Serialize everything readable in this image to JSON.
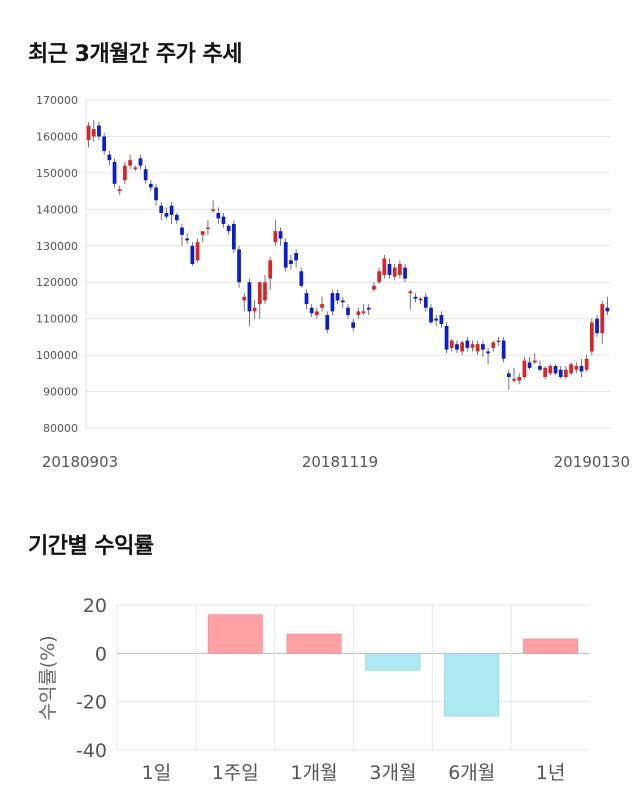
{
  "section1": {
    "title": "최근 3개월간 주가 추세"
  },
  "section2": {
    "title": "기간별 수익률"
  },
  "chart_data": [
    {
      "type": "candlestick",
      "title": "최근 3개월간 주가 추세",
      "ylim": [
        80000,
        170000
      ],
      "yticks": [
        80000,
        90000,
        100000,
        110000,
        120000,
        130000,
        140000,
        150000,
        160000,
        170000
      ],
      "x_tick_labels": [
        "20180903",
        "20181119",
        "20190130"
      ],
      "grid": true,
      "up_color": "#d62728",
      "down_color": "#0a1fc7",
      "candles": [
        [
          159000,
          164000,
          157000,
          163000
        ],
        [
          160000,
          164500,
          158500,
          162000
        ],
        [
          163000,
          164000,
          159000,
          160000
        ],
        [
          160000,
          161000,
          155000,
          156000
        ],
        [
          155000,
          156000,
          152000,
          153500
        ],
        [
          153000,
          154000,
          146000,
          147000
        ],
        [
          145000,
          146500,
          144000,
          145500
        ],
        [
          148000,
          153000,
          147000,
          152000
        ],
        [
          152000,
          155000,
          151000,
          153500
        ],
        [
          151000,
          152000,
          150500,
          151500
        ],
        [
          154000,
          155000,
          151000,
          152000
        ],
        [
          151000,
          152000,
          147000,
          148000
        ],
        [
          147000,
          148000,
          145000,
          146000
        ],
        [
          146000,
          147000,
          141000,
          142500
        ],
        [
          141000,
          142000,
          137000,
          139000
        ],
        [
          139000,
          140500,
          137500,
          138000
        ],
        [
          141000,
          142000,
          136000,
          138500
        ],
        [
          138500,
          139000,
          136000,
          137000
        ],
        [
          135000,
          136000,
          130000,
          133000
        ],
        [
          132000,
          133500,
          130500,
          131500
        ],
        [
          130000,
          131000,
          124500,
          125000
        ],
        [
          126000,
          132000,
          125500,
          131000
        ],
        [
          133000,
          134000,
          131000,
          134000
        ],
        [
          135000,
          137000,
          133000,
          135000
        ],
        [
          140000,
          142500,
          139000,
          140000
        ],
        [
          139000,
          140500,
          136000,
          137500
        ],
        [
          138000,
          139000,
          135000,
          136000
        ],
        [
          135500,
          136000,
          133000,
          134000
        ],
        [
          136000,
          137000,
          128000,
          129000
        ],
        [
          129000,
          130000,
          118500,
          120000
        ],
        [
          115000,
          117000,
          112000,
          116000
        ],
        [
          120000,
          121000,
          108000,
          112000
        ],
        [
          112000,
          115000,
          110000,
          113000
        ],
        [
          114000,
          120000,
          110000,
          120000
        ],
        [
          115000,
          122000,
          114000,
          120000
        ],
        [
          121000,
          127000,
          118000,
          126000
        ],
        [
          131000,
          137000,
          130000,
          134000
        ],
        [
          134000,
          135000,
          130000,
          132000
        ],
        [
          131000,
          132000,
          123000,
          124000
        ],
        [
          126000,
          127500,
          123500,
          125000
        ],
        [
          128000,
          129000,
          124000,
          126000
        ],
        [
          123000,
          124000,
          118500,
          119000
        ],
        [
          117000,
          118000,
          112500,
          114000
        ],
        [
          113000,
          114000,
          110500,
          111500
        ],
        [
          111000,
          113000,
          110000,
          112000
        ],
        [
          113000,
          116000,
          112000,
          114000
        ],
        [
          111000,
          112000,
          106000,
          107000
        ],
        [
          117000,
          118000,
          111000,
          112000
        ],
        [
          117000,
          118000,
          114000,
          115000
        ],
        [
          115000,
          116000,
          113000,
          114500
        ],
        [
          113000,
          114000,
          110000,
          111000
        ],
        [
          109000,
          110000,
          106500,
          107500
        ],
        [
          111000,
          113000,
          110000,
          112000
        ],
        [
          112000,
          114000,
          111000,
          112000
        ],
        [
          113000,
          114000,
          111000,
          112500
        ],
        [
          118000,
          120000,
          117500,
          119000
        ],
        [
          120000,
          124000,
          119500,
          123000
        ],
        [
          122000,
          127500,
          121000,
          126500
        ],
        [
          125000,
          126500,
          121000,
          122000
        ],
        [
          121500,
          125000,
          120500,
          124000
        ],
        [
          122000,
          126000,
          121000,
          125000
        ],
        [
          124000,
          125000,
          120000,
          121000
        ],
        [
          117000,
          118000,
          112500,
          117500
        ],
        [
          116000,
          117000,
          114500,
          115500
        ],
        [
          115000,
          116000,
          114000,
          115500
        ],
        [
          116000,
          117000,
          112000,
          113000
        ],
        [
          113000,
          114000,
          108500,
          109000
        ],
        [
          110000,
          111000,
          108000,
          109500
        ],
        [
          111000,
          112000,
          107500,
          108500
        ],
        [
          108000,
          109000,
          100500,
          101500
        ],
        [
          102000,
          104500,
          101000,
          104000
        ],
        [
          103000,
          104000,
          100500,
          101500
        ],
        [
          101000,
          104000,
          100000,
          103500
        ],
        [
          104000,
          105000,
          101000,
          102000
        ],
        [
          102000,
          104000,
          101000,
          103000
        ],
        [
          101000,
          104000,
          100000,
          103000
        ],
        [
          103000,
          104000,
          99500,
          101500
        ],
        [
          101000,
          102000,
          97500,
          100500
        ],
        [
          102000,
          104000,
          101000,
          103500
        ],
        [
          104000,
          105000,
          102500,
          104000
        ],
        [
          104000,
          105000,
          98000,
          99000
        ],
        [
          95000,
          96000,
          90500,
          94000
        ],
        [
          93000,
          96500,
          92500,
          93500
        ],
        [
          93000,
          95000,
          92000,
          94000
        ],
        [
          94000,
          99500,
          93500,
          98500
        ],
        [
          98000,
          99500,
          96000,
          96500
        ],
        [
          98000,
          100500,
          97500,
          98500
        ],
        [
          97000,
          98500,
          95500,
          96000
        ],
        [
          94000,
          97000,
          93500,
          96500
        ],
        [
          95000,
          97500,
          94500,
          97000
        ],
        [
          97000,
          97500,
          94500,
          95000
        ],
        [
          96000,
          97000,
          93500,
          94000
        ],
        [
          94000,
          97000,
          93500,
          96000
        ],
        [
          95000,
          98000,
          94500,
          97500
        ],
        [
          96000,
          98000,
          95000,
          97000
        ],
        [
          97000,
          99000,
          94000,
          95500
        ],
        [
          96000,
          100000,
          95500,
          99000
        ],
        [
          101000,
          110000,
          100000,
          109000
        ],
        [
          110000,
          111000,
          105000,
          106000
        ],
        [
          106000,
          115000,
          103000,
          114000
        ],
        [
          113000,
          116000,
          111000,
          112000
        ]
      ]
    },
    {
      "type": "bar",
      "title": "기간별 수익률",
      "categories": [
        "1일",
        "1주일",
        "1개월",
        "3개월",
        "6개월",
        "1년"
      ],
      "values": [
        0,
        16,
        8,
        -7,
        -26,
        6
      ],
      "ylabel": "수익률(%)",
      "ylim": [
        -40,
        20
      ],
      "yticks": [
        20,
        0,
        -20,
        -40
      ],
      "grid": true,
      "pos_color": "#ffa1a4",
      "neg_color": "#aee9f2"
    }
  ]
}
